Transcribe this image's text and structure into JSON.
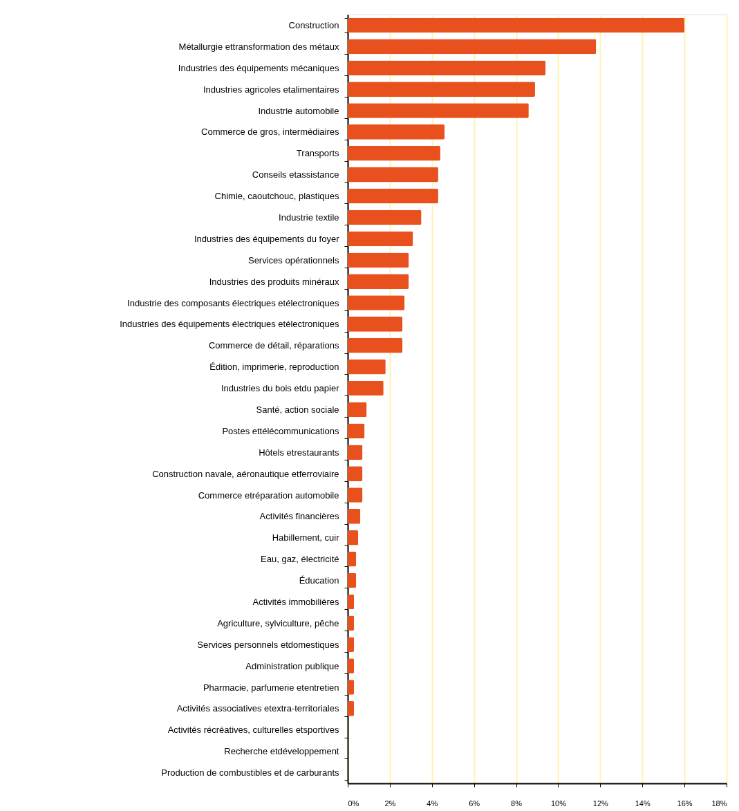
{
  "chart_data": {
    "type": "bar",
    "orientation": "horizontal",
    "categories": [
      "Construction",
      "Métallurgie ettransformation des métaux",
      "Industries des équipements mécaniques",
      "Industries agricoles etalimentaires",
      "Industrie automobile",
      "Commerce de gros, intermédiaires",
      "Transports",
      "Conseils etassistance",
      "Chimie, caoutchouc, plastiques",
      "Industrie textile",
      "Industries des équipements du foyer",
      "Services opérationnels",
      "Industries des produits minéraux",
      "Industrie des composants électriques etélectroniques",
      "Industries des équipements électriques etélectroniques",
      "Commerce de détail, réparations",
      "Édition, imprimerie, reproduction",
      "Industries du bois etdu papier",
      "Santé, action sociale",
      "Postes ettélécommunications",
      "Hôtels etrestaurants",
      "Construction navale, aéronautique etferroviaire",
      "Commerce etréparation automobile",
      "Activités financières",
      "Habillement, cuir",
      "Eau, gaz, électricité",
      "Éducation",
      "Activités immobilières",
      "Agriculture, sylviculture, pêche",
      "Services personnels etdomestiques",
      "Administration publique",
      "Pharmacie, parfumerie etentretien",
      "Activités associatives etextra-territoriales",
      "Activités récréatives, culturelles etsportives",
      "Recherche etdéveloppement",
      "Production de combustibles et de carburants"
    ],
    "values": [
      16.0,
      11.8,
      9.4,
      8.9,
      8.6,
      4.6,
      4.4,
      4.3,
      4.3,
      3.5,
      3.1,
      2.9,
      2.9,
      2.7,
      2.6,
      2.6,
      1.8,
      1.7,
      0.9,
      0.8,
      0.7,
      0.7,
      0.7,
      0.6,
      0.5,
      0.4,
      0.4,
      0.3,
      0.3,
      0.3,
      0.3,
      0.3,
      0.3,
      0,
      0,
      0
    ],
    "color": "#e8501e",
    "xlim": [
      0,
      18
    ],
    "xticks": [
      {
        "value": 0,
        "label": "0%"
      },
      {
        "value": 2,
        "label": "2%"
      },
      {
        "value": 4,
        "label": "4%"
      },
      {
        "value": 6,
        "label": "6%"
      },
      {
        "value": 8,
        "label": "8%"
      },
      {
        "value": 10,
        "label": "10%"
      },
      {
        "value": 12,
        "label": "12%"
      },
      {
        "value": 14,
        "label": "14%"
      },
      {
        "value": 16,
        "label": "16%"
      },
      {
        "value": 18,
        "label": "18%"
      }
    ],
    "grid": "x"
  }
}
